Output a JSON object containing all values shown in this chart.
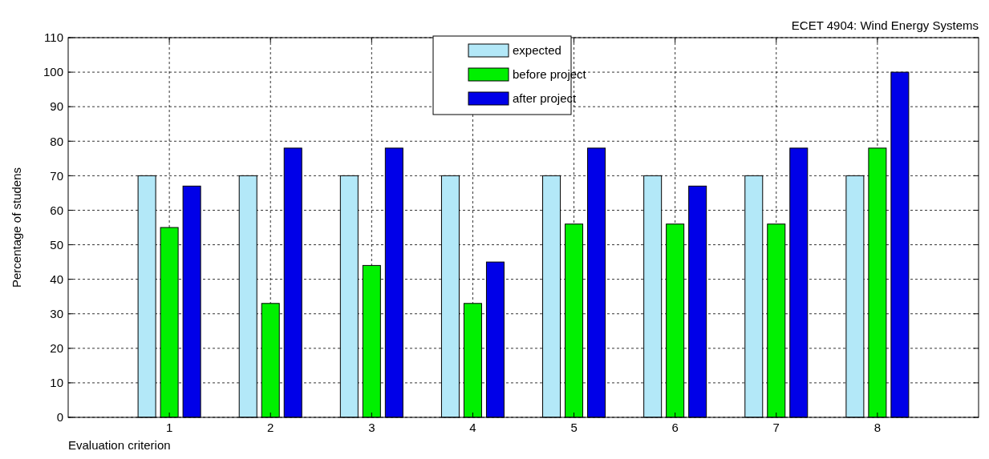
{
  "chart_data": {
    "type": "bar",
    "title": "ECET 4904: Wind Energy Systems",
    "xlabel": "Evaluation criterion",
    "ylabel": "Percentage of studens",
    "categories": [
      "1",
      "2",
      "3",
      "4",
      "5",
      "6",
      "7",
      "8"
    ],
    "series": [
      {
        "name": "expected",
        "color": "#b3e8f8",
        "values": [
          70,
          70,
          70,
          70,
          70,
          70,
          70,
          70
        ]
      },
      {
        "name": "before project",
        "color": "#00f000",
        "values": [
          55,
          33,
          44,
          33,
          56,
          56,
          56,
          78
        ]
      },
      {
        "name": "after project",
        "color": "#0000e8",
        "values": [
          67,
          78,
          78,
          45,
          78,
          67,
          78,
          100
        ]
      }
    ],
    "ylim": [
      0,
      110
    ],
    "yticks": [
      0,
      10,
      20,
      30,
      40,
      50,
      60,
      70,
      80,
      90,
      100,
      110
    ],
    "grid": true,
    "legend": "top"
  }
}
